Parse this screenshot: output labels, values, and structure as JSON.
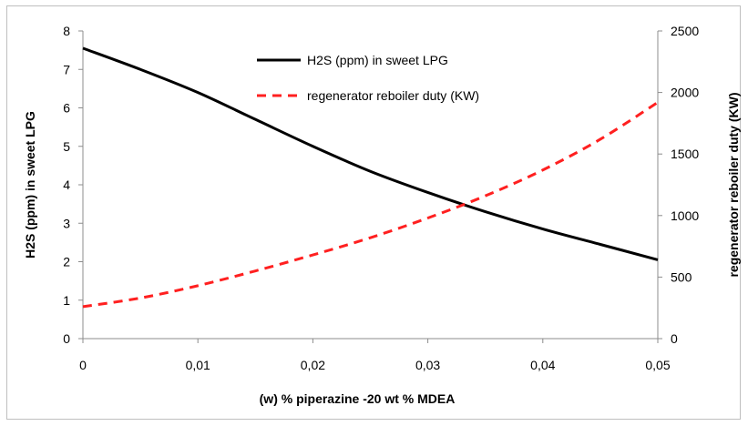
{
  "chart_data": {
    "type": "line",
    "xlabel": "(w) % piperazine -20 wt % MDEA",
    "ylabel": "H2S (ppm) in sweet LPG",
    "y2label": "regenerator reboiler duty (KW)",
    "x_ticks": [
      "0",
      "0,01",
      "0,02",
      "0,03",
      "0,04",
      "0,05"
    ],
    "y_ticks": [
      "0",
      "1",
      "2",
      "3",
      "4",
      "5",
      "6",
      "7",
      "8"
    ],
    "y2_ticks": [
      "0",
      "500",
      "1000",
      "1500",
      "2000",
      "2500"
    ],
    "xlim": [
      0,
      0.05
    ],
    "ylim": [
      0,
      8
    ],
    "y2lim": [
      0,
      2500
    ],
    "legend_position": "top-center",
    "series": [
      {
        "name": "H2S (ppm) in sweet LPG",
        "axis": "left",
        "color": "#000000",
        "style": "solid",
        "x": [
          0,
          0.005,
          0.01,
          0.015,
          0.02,
          0.025,
          0.03,
          0.035,
          0.04,
          0.045,
          0.05
        ],
        "values": [
          7.55,
          7.0,
          6.4,
          5.7,
          5.0,
          4.35,
          3.8,
          3.3,
          2.85,
          2.45,
          2.05
        ]
      },
      {
        "name": "regenerator reboiler duty (KW)",
        "axis": "right",
        "color": "#ff2020",
        "style": "dashed",
        "x": [
          0,
          0.005,
          0.01,
          0.015,
          0.02,
          0.025,
          0.03,
          0.035,
          0.04,
          0.045,
          0.05
        ],
        "values": [
          260,
          330,
          430,
          550,
          680,
          820,
          980,
          1160,
          1370,
          1620,
          1920
        ]
      }
    ]
  }
}
